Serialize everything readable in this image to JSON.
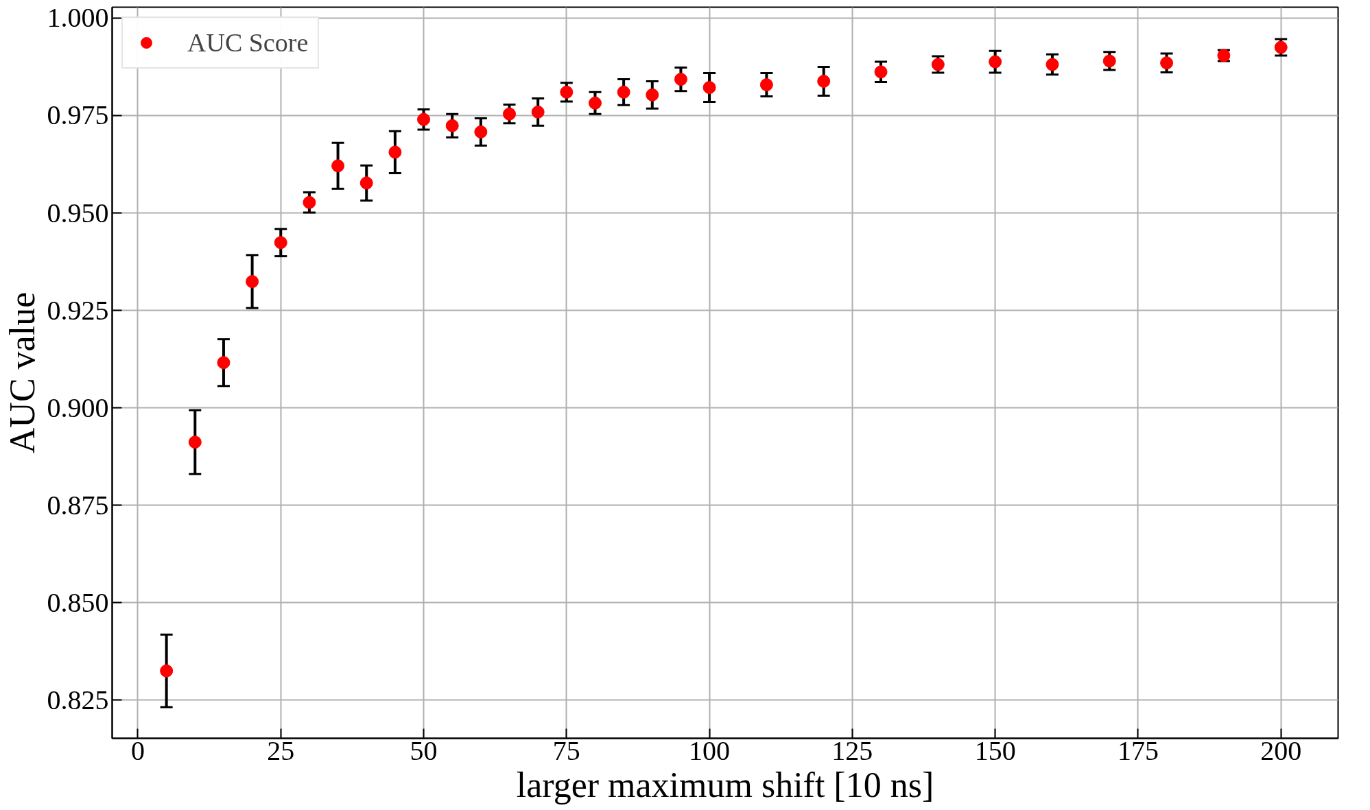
{
  "chart_data": {
    "type": "scatter",
    "xlabel": "larger maximum shift [10 ns]",
    "ylabel": "AUC value",
    "x": [
      5,
      10,
      15,
      20,
      25,
      30,
      35,
      40,
      45,
      50,
      55,
      60,
      65,
      70,
      75,
      80,
      85,
      90,
      95,
      100,
      110,
      120,
      130,
      140,
      150,
      160,
      170,
      180,
      190,
      200
    ],
    "series": [
      {
        "name": "AUC Score",
        "color": "#ff0000",
        "values": [
          0.8325,
          0.8912,
          0.9116,
          0.9324,
          0.9424,
          0.9527,
          0.9621,
          0.9577,
          0.9656,
          0.974,
          0.9724,
          0.9708,
          0.9754,
          0.9759,
          0.981,
          0.9782,
          0.981,
          0.9803,
          0.9843,
          0.9822,
          0.9829,
          0.9838,
          0.9862,
          0.9881,
          0.9888,
          0.9881,
          0.989,
          0.9885,
          0.9904,
          0.9925
        ],
        "errors": [
          0.0093,
          0.0082,
          0.006,
          0.0068,
          0.0035,
          0.0026,
          0.0059,
          0.0045,
          0.0054,
          0.0026,
          0.003,
          0.0035,
          0.0024,
          0.0035,
          0.0024,
          0.0028,
          0.0033,
          0.0035,
          0.003,
          0.0037,
          0.003,
          0.0037,
          0.0026,
          0.0021,
          0.0028,
          0.0026,
          0.0023,
          0.0024,
          0.0014,
          0.0021
        ]
      }
    ],
    "xlim": [
      -4.5,
      210
    ],
    "ylim": [
      0.8152,
      1.0028
    ],
    "xticks": [
      0,
      25,
      50,
      75,
      100,
      125,
      150,
      175,
      200
    ],
    "yticks": [
      {
        "value": 0.825,
        "label": "0.825"
      },
      {
        "value": 0.85,
        "label": "0.850"
      },
      {
        "value": 0.875,
        "label": "0.875"
      },
      {
        "value": 0.9,
        "label": "0.900"
      },
      {
        "value": 0.925,
        "label": "0.925"
      },
      {
        "value": 0.95,
        "label": "0.950"
      },
      {
        "value": 0.975,
        "label": "0.975"
      },
      {
        "value": 1.0,
        "label": "1.000"
      }
    ],
    "grid": true,
    "legend": "top left",
    "marker": "circle"
  }
}
